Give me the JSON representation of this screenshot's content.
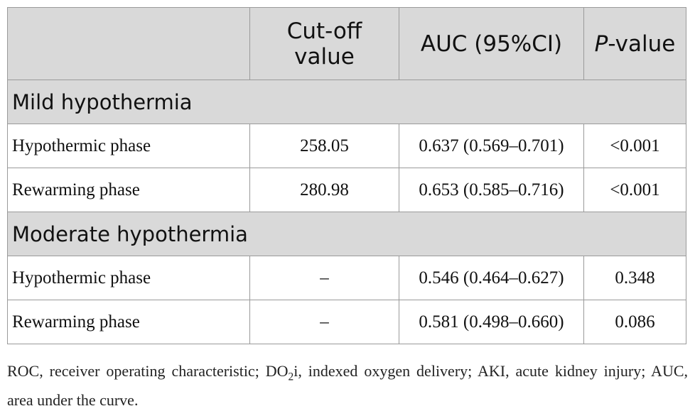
{
  "header": {
    "col1": "",
    "col2": "Cut-off value",
    "col3": "AUC (95%CI)",
    "col4_italic": "P",
    "col4_rest": "-value"
  },
  "groups": [
    {
      "title": "Mild hypothermia",
      "rows": [
        {
          "label": "Hypothermic phase",
          "cutoff": "258.05",
          "auc": "0.637 (0.569–0.701)",
          "p": "<0.001"
        },
        {
          "label": "Rewarming phase",
          "cutoff": "280.98",
          "auc": "0.653 (0.585–0.716)",
          "p": "<0.001"
        }
      ]
    },
    {
      "title": "Moderate hypothermia",
      "rows": [
        {
          "label": "Hypothermic phase",
          "cutoff": "–",
          "auc": "0.546 (0.464–0.627)",
          "p": "0.348"
        },
        {
          "label": "Rewarming phase",
          "cutoff": "–",
          "auc": "0.581 (0.498–0.660)",
          "p": "0.086"
        }
      ]
    }
  ],
  "footnote": {
    "part1": "ROC, receiver operating characteristic; DO",
    "sub": "2",
    "part2": "i, indexed oxygen delivery; AKI, acute kidney injury; AUC, area under the curve."
  }
}
